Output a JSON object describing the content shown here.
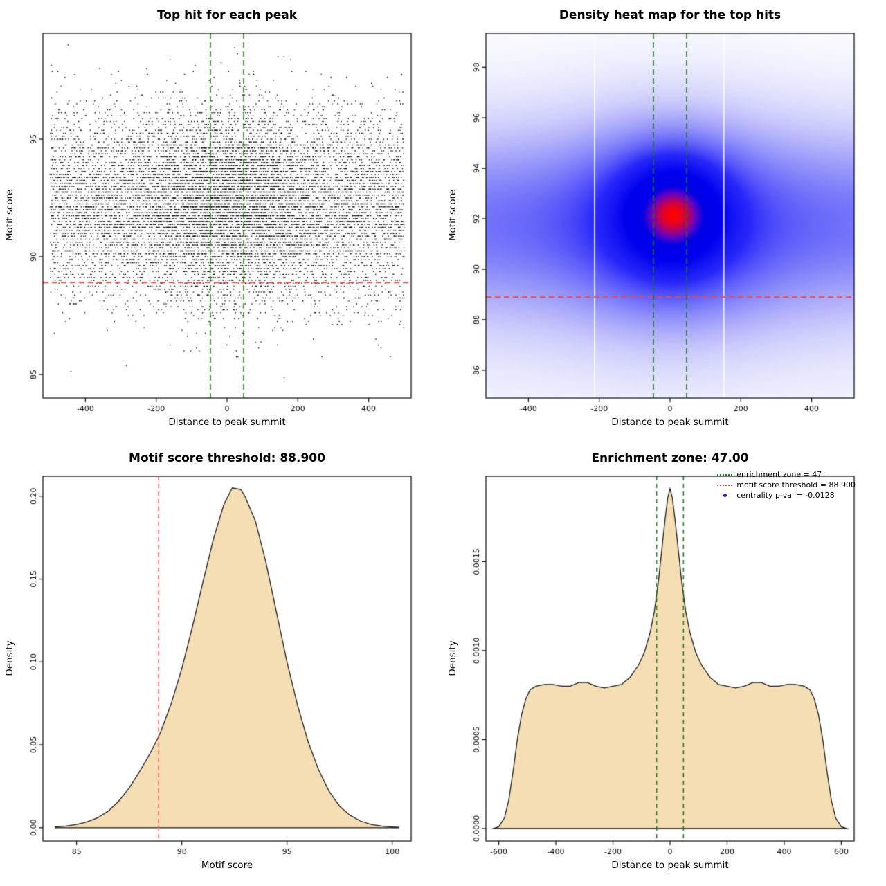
{
  "page": {
    "background": "#ffffff"
  },
  "chart_data": [
    {
      "type": "scatter",
      "title": "Top hit for each peak",
      "xlabel": "Distance to peak summit",
      "ylabel": "Motif score",
      "xlim": [
        -520,
        520
      ],
      "ylim": [
        84.0,
        99.5
      ],
      "xticks": [
        -400,
        -200,
        0,
        200,
        400
      ],
      "xtick_labels": [
        "-400",
        "-200",
        "0",
        "200",
        "400"
      ],
      "yticks": [
        85,
        90,
        95
      ],
      "ytick_labels": [
        "85",
        "90",
        "95"
      ],
      "grid": false,
      "point_color": "#000000",
      "n_points": 11000,
      "seed": 42,
      "x_distribution": {
        "uniform_frac": 0.7,
        "uniform_range": [
          -500,
          500
        ],
        "center_sd": 140
      },
      "y_distribution": {
        "mean": 92.2,
        "sd": 2.0,
        "quantize_step": 0.125,
        "min": 84.3,
        "max": 99.2
      },
      "hline": {
        "y": 88.9,
        "color": "#ff4040",
        "style": "dashed"
      },
      "vlines": {
        "x": [
          -47,
          47
        ],
        "color": "#1a7a1a",
        "style": "dashed"
      }
    },
    {
      "type": "heatmap",
      "title": "Density heat map for the top hits",
      "xlabel": "Distance to peak summit",
      "ylabel": "Motif score",
      "xlim": [
        -520,
        520
      ],
      "ylim": [
        84.9,
        99.35
      ],
      "xticks": [
        -400,
        -200,
        0,
        200,
        400
      ],
      "xtick_labels": [
        "-400",
        "-200",
        "0",
        "200",
        "400"
      ],
      "yticks": [
        86,
        88,
        90,
        92,
        94,
        96,
        98
      ],
      "ytick_labels": [
        "86",
        "88",
        "90",
        "92",
        "94",
        "96",
        "98"
      ],
      "grid": false,
      "density_model": {
        "components": [
          {
            "kind": "band",
            "amp": 0.5,
            "y_mean": 91.9,
            "y_sd": 2.5
          },
          {
            "kind": "band",
            "amp": 0.12,
            "y_mean": 90.5,
            "y_sd": 4.0
          },
          {
            "kind": "blob",
            "amp": 1.0,
            "x_mean": 10,
            "x_sd": 90,
            "y_mean": 92.25,
            "y_sd": 1.3
          },
          {
            "kind": "blob",
            "amp": 0.55,
            "x_mean": 5,
            "x_sd": 150,
            "y_mean": 92.0,
            "y_sd": 2.2
          },
          {
            "kind": "blob",
            "amp": 0.22,
            "x_mean": 0,
            "x_sd": 260,
            "y_mean": 91.5,
            "y_sd": 3.4
          }
        ],
        "gamma": 0.92
      },
      "colormap": [
        {
          "v": 0.0,
          "c": "#ffffff"
        },
        {
          "v": 0.12,
          "c": "#cdcdfc"
        },
        {
          "v": 0.25,
          "c": "#8c8cfa"
        },
        {
          "v": 0.45,
          "c": "#2828fa"
        },
        {
          "v": 0.65,
          "c": "#0000f0"
        },
        {
          "v": 0.82,
          "c": "#0000e6"
        },
        {
          "v": 0.9,
          "c": "#6e00be"
        },
        {
          "v": 1.0,
          "c": "#ff0000"
        }
      ],
      "artifact_stripes_x": [
        -213,
        152
      ],
      "hline": {
        "y": 88.9,
        "color": "#ff4040",
        "style": "dashed"
      },
      "vlines": {
        "x": [
          -47,
          47
        ],
        "color": "#1a7a1a",
        "style": "dashed"
      }
    },
    {
      "type": "area",
      "title": "Motif score threshold: 88.900",
      "xlabel": "Motif score",
      "ylabel": "Density",
      "xlim": [
        83.4,
        100.9
      ],
      "ylim": [
        -0.008,
        0.212
      ],
      "xticks": [
        85,
        90,
        95,
        100
      ],
      "xtick_labels": [
        "85",
        "90",
        "95",
        "100"
      ],
      "yticks": [
        0,
        0.05,
        0.1,
        0.15,
        0.2
      ],
      "ytick_labels": [
        "0.00",
        "0.05",
        "0.10",
        "0.15",
        "0.20"
      ],
      "grid": false,
      "fill_color": "#f5deb3",
      "line_color": "#1a1a1a",
      "vline": {
        "x": 88.9,
        "color": "#f05050",
        "style": "dashed"
      },
      "points": [
        [
          84.0,
          0.0005
        ],
        [
          84.5,
          0.001
        ],
        [
          85.0,
          0.002
        ],
        [
          85.5,
          0.0035
        ],
        [
          86.0,
          0.006
        ],
        [
          86.5,
          0.01
        ],
        [
          87.0,
          0.016
        ],
        [
          87.5,
          0.024
        ],
        [
          88.0,
          0.034
        ],
        [
          88.5,
          0.045
        ],
        [
          88.9,
          0.055
        ],
        [
          89.0,
          0.058
        ],
        [
          89.5,
          0.075
        ],
        [
          90.0,
          0.096
        ],
        [
          90.5,
          0.121
        ],
        [
          91.0,
          0.148
        ],
        [
          91.5,
          0.174
        ],
        [
          92.0,
          0.195
        ],
        [
          92.4,
          0.205
        ],
        [
          92.8,
          0.204
        ],
        [
          93.0,
          0.2
        ],
        [
          93.5,
          0.185
        ],
        [
          94.0,
          0.16
        ],
        [
          94.5,
          0.13
        ],
        [
          95.0,
          0.1
        ],
        [
          95.5,
          0.074
        ],
        [
          96.0,
          0.052
        ],
        [
          96.5,
          0.035
        ],
        [
          97.0,
          0.022
        ],
        [
          97.5,
          0.013
        ],
        [
          98.0,
          0.0075
        ],
        [
          98.5,
          0.004
        ],
        [
          99.0,
          0.002
        ],
        [
          99.5,
          0.001
        ],
        [
          100.0,
          0.0005
        ],
        [
          100.3,
          0.0003
        ]
      ]
    },
    {
      "type": "area",
      "title": "Enrichment zone: 47.00",
      "xlabel": "Distance to peak summit",
      "ylabel": "Density",
      "xlim": [
        -645,
        645
      ],
      "ylim": [
        -7e-05,
        0.00198
      ],
      "xticks": [
        -600,
        -400,
        -200,
        0,
        200,
        400,
        600
      ],
      "xtick_labels": [
        "-600",
        "-400",
        "-200",
        "0",
        "200",
        "400",
        "600"
      ],
      "yticks": [
        0,
        0.0005,
        0.001,
        0.0015
      ],
      "ytick_labels": [
        "0.0000",
        "0.0005",
        "0.0010",
        "0.0015"
      ],
      "grid": false,
      "fill_color": "#f5deb3",
      "line_color": "#1a1a1a",
      "vlines": {
        "x": [
          -47,
          47
        ],
        "color": "#1a7a1a",
        "style": "dashed"
      },
      "legend": {
        "position": "top-right",
        "entries": [
          {
            "label": "enrichment zone = 47",
            "marker": "dotted-line",
            "color": "#1a7a1a"
          },
          {
            "label": "motif score threshold = 88.900",
            "marker": "dotted-line",
            "color": "#ff4444"
          },
          {
            "label": "centrality p-val = -0.0128",
            "marker": "point",
            "color": "#2020cc"
          }
        ]
      },
      "points": [
        [
          -620,
          0
        ],
        [
          -600,
          1e-05
        ],
        [
          -580,
          6e-05
        ],
        [
          -565,
          0.00016
        ],
        [
          -550,
          0.00032
        ],
        [
          -535,
          0.0005
        ],
        [
          -520,
          0.00064
        ],
        [
          -505,
          0.00073
        ],
        [
          -490,
          0.00078
        ],
        [
          -470,
          0.0008
        ],
        [
          -440,
          0.00081
        ],
        [
          -410,
          0.00081
        ],
        [
          -380,
          0.0008
        ],
        [
          -350,
          0.0008
        ],
        [
          -320,
          0.00082
        ],
        [
          -290,
          0.00082
        ],
        [
          -260,
          0.0008
        ],
        [
          -230,
          0.00079
        ],
        [
          -200,
          0.0008
        ],
        [
          -170,
          0.00081
        ],
        [
          -140,
          0.00085
        ],
        [
          -110,
          0.00092
        ],
        [
          -90,
          0.00099
        ],
        [
          -70,
          0.0011
        ],
        [
          -55,
          0.00122
        ],
        [
          -40,
          0.0014
        ],
        [
          -28,
          0.00158
        ],
        [
          -18,
          0.00173
        ],
        [
          -8,
          0.00186
        ],
        [
          0,
          0.00191
        ],
        [
          8,
          0.00186
        ],
        [
          18,
          0.00173
        ],
        [
          28,
          0.00158
        ],
        [
          40,
          0.0014
        ],
        [
          55,
          0.00122
        ],
        [
          70,
          0.0011
        ],
        [
          90,
          0.00099
        ],
        [
          110,
          0.00092
        ],
        [
          140,
          0.00085
        ],
        [
          170,
          0.00081
        ],
        [
          200,
          0.0008
        ],
        [
          230,
          0.00079
        ],
        [
          260,
          0.0008
        ],
        [
          290,
          0.00082
        ],
        [
          320,
          0.00082
        ],
        [
          350,
          0.0008
        ],
        [
          380,
          0.0008
        ],
        [
          410,
          0.00081
        ],
        [
          440,
          0.00081
        ],
        [
          470,
          0.0008
        ],
        [
          490,
          0.00078
        ],
        [
          505,
          0.00073
        ],
        [
          520,
          0.00064
        ],
        [
          535,
          0.0005
        ],
        [
          550,
          0.00032
        ],
        [
          565,
          0.00016
        ],
        [
          580,
          6e-05
        ],
        [
          600,
          1e-05
        ],
        [
          620,
          0
        ]
      ]
    }
  ]
}
